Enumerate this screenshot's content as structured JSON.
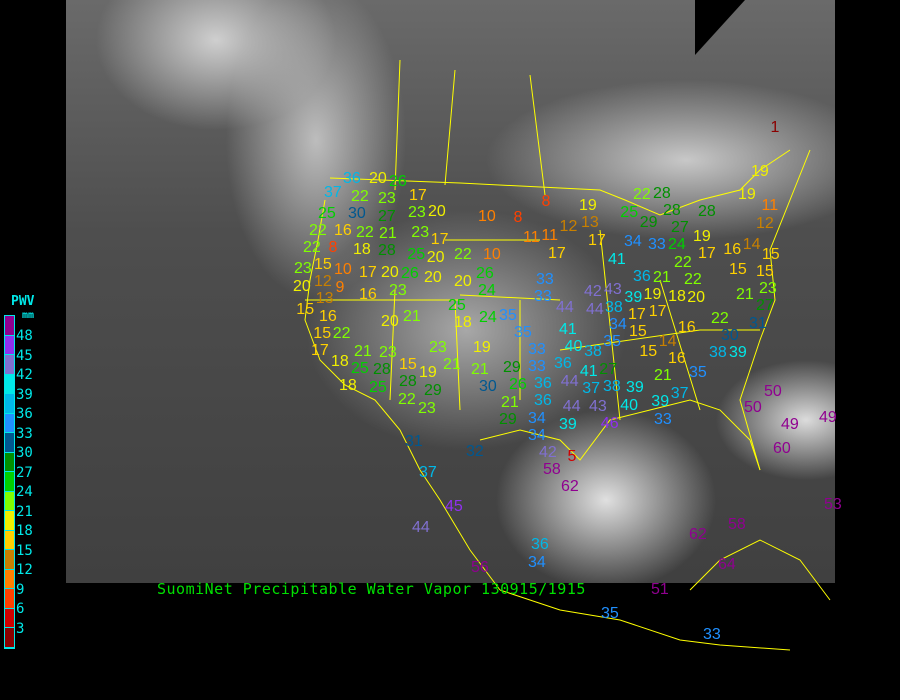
{
  "title": "SuomiNet Precipitable Water Vapor 130915/1915",
  "legend": {
    "title": "PWV",
    "unit": "mm",
    "labels": [
      "48",
      "45",
      "42",
      "39",
      "36",
      "33",
      "30",
      "27",
      "24",
      "21",
      "18",
      "15",
      "12",
      "9",
      "6",
      "3"
    ],
    "colors": [
      "#900090",
      "#9030f0",
      "#8070d0",
      "#00e8e8",
      "#00b8e8",
      "#2090ff",
      "#005890",
      "#009000",
      "#00d000",
      "#80ff00",
      "#f0f000",
      "#ffd000",
      "#c88000",
      "#ff8000",
      "#ff4000",
      "#d00000",
      "#8b0000"
    ]
  },
  "stations": [
    37,
    36,
    20,
    26,
    17,
    22,
    23,
    25,
    30,
    27,
    23,
    20,
    10,
    8,
    8,
    22,
    16,
    22,
    21,
    23,
    18,
    28,
    17,
    11,
    22,
    8,
    25,
    20,
    22,
    10,
    23,
    15,
    10,
    17,
    20,
    26,
    20,
    20,
    26,
    24,
    33,
    20,
    12,
    9,
    23,
    13,
    16,
    15,
    16,
    25,
    22,
    20,
    21,
    18,
    24,
    35,
    15,
    35,
    17,
    21,
    23,
    23,
    19,
    18,
    25,
    28,
    15,
    19,
    21,
    21,
    29,
    33,
    18,
    25,
    28,
    30,
    26,
    29,
    36,
    22,
    23,
    21,
    34,
    29,
    19,
    12,
    13,
    17,
    11,
    17,
    25,
    22,
    28,
    29,
    28,
    27,
    28,
    34,
    33,
    24,
    22,
    19,
    17,
    19,
    11,
    12,
    16,
    14,
    15,
    15,
    15,
    22,
    41,
    36,
    21,
    19,
    18,
    20,
    33,
    42,
    43,
    39,
    44,
    44,
    38,
    17,
    17,
    21,
    23,
    27,
    31,
    22,
    30,
    34,
    15,
    16,
    35,
    41,
    40,
    38,
    14,
    15,
    38,
    39,
    16,
    36,
    33,
    41,
    27,
    21,
    35,
    44,
    38,
    39,
    37,
    37,
    40,
    39,
    36,
    44,
    43,
    34,
    33,
    46,
    39,
    50,
    50,
    49,
    31,
    32,
    37,
    45,
    44,
    42,
    58,
    5,
    62,
    36,
    34,
    56,
    51,
    62,
    58,
    35,
    33,
    49,
    60,
    53,
    64,
    1,
    19
  ]
}
